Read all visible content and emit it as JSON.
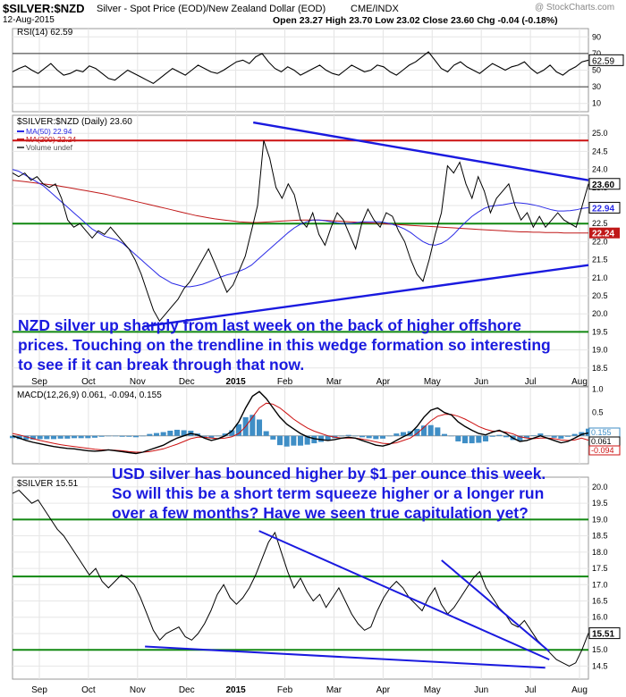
{
  "header": {
    "symbol": "$SILVER:$NZD",
    "description": "Silver - Spot Price (EOD)/New Zealand Dollar (EOD)",
    "source": "CME/INDX",
    "date": "12-Aug-2015",
    "ohlc": "Open 23.27  High 23.70  Low 23.02  Close 23.60  Chg -0.04 (-0.18%)",
    "watermark": "@ StockCharts.com"
  },
  "annotations": {
    "nzd_note": "NZD silver up sharply from last week on the back of higher offshore prices. Touching on the trendline in this wedge formation so interesting to see if it can break through that now.",
    "usd_note": "USD silver has bounced higher by $1 per ounce this week. So will this be a short term squeeze higher or a longer run over a few months? Have we seen true capitulation yet?"
  },
  "colors": {
    "price": "#000000",
    "ma50": "#2a2ae6",
    "ma200": "#c01818",
    "support_lines": "#118811",
    "resistance_line": "#cc1111",
    "trendline": "#1a1adf",
    "annotation_text": "#1a1adf",
    "macd": "#000000",
    "signal": "#cc1111",
    "histogram": "#3f8ec6",
    "last_price_tag": "#000000"
  },
  "x_axis": {
    "ticks": [
      "Sep",
      "Oct",
      "Nov",
      "Dec",
      "2015",
      "Feb",
      "Mar",
      "Apr",
      "May",
      "Jun",
      "Jul",
      "Aug"
    ]
  },
  "chart_data": [
    {
      "type": "line",
      "name": "rsi",
      "title": "RSI(14) 62.59",
      "ylim": [
        0,
        100
      ],
      "y_ticks": [
        10,
        30,
        50,
        70,
        90
      ],
      "reference_levels": [
        30,
        70
      ],
      "last_value_label": "62.59",
      "values": [
        48,
        52,
        55,
        50,
        46,
        52,
        58,
        50,
        44,
        46,
        50,
        48,
        55,
        52,
        46,
        40,
        38,
        44,
        50,
        46,
        42,
        38,
        34,
        40,
        46,
        52,
        48,
        44,
        50,
        56,
        52,
        48,
        46,
        50,
        55,
        60,
        62,
        58,
        66,
        70,
        60,
        52,
        48,
        54,
        50,
        44,
        48,
        52,
        56,
        50,
        46,
        44,
        50,
        56,
        52,
        48,
        50,
        56,
        54,
        48,
        44,
        50,
        56,
        60,
        66,
        72,
        62,
        52,
        48,
        56,
        60,
        54,
        50,
        46,
        52,
        58,
        54,
        50,
        54,
        56,
        60,
        52,
        46,
        50,
        56,
        48,
        44,
        50,
        54,
        60,
        62
      ]
    },
    {
      "type": "line",
      "name": "silver_nzd",
      "title": "$SILVER:$NZD (Daily) 23.60",
      "legend": [
        "MA(50) 22.94",
        "MA(200) 22.24",
        "Volume undef"
      ],
      "ylim": [
        18.0,
        25.5
      ],
      "y_ticks": [
        "18.5",
        "19.0",
        "19.5",
        "20.0",
        "20.5",
        "21.0",
        "21.5",
        "22.0",
        "22.5",
        "23.0",
        "23.5",
        "24.0",
        "24.5",
        "25.0"
      ],
      "horizontal_levels": {
        "resistance": 24.8,
        "support": [
          22.5,
          19.5
        ]
      },
      "trendlines": [
        {
          "name": "upper",
          "from": [
            0.418,
            25.3
          ],
          "to": [
            1.0,
            23.7
          ]
        },
        {
          "name": "lower",
          "from": [
            0.228,
            19.65
          ],
          "to": [
            1.0,
            21.35
          ]
        }
      ],
      "last_value_labels": {
        "close": "23.60",
        "ma50": "22.94",
        "ma200": "22.24"
      },
      "close": [
        23.9,
        23.8,
        23.9,
        23.7,
        23.8,
        23.6,
        23.5,
        23.6,
        23.2,
        22.6,
        22.4,
        22.5,
        22.3,
        22.1,
        22.3,
        22.2,
        22.4,
        22.2,
        22.0,
        21.8,
        21.5,
        21.1,
        20.6,
        20.1,
        19.8,
        20.0,
        20.2,
        20.4,
        20.7,
        20.9,
        21.2,
        21.5,
        21.8,
        21.4,
        21.0,
        20.6,
        20.8,
        21.2,
        21.6,
        22.3,
        23.0,
        24.8,
        24.3,
        23.5,
        23.2,
        23.6,
        23.3,
        22.6,
        22.4,
        22.8,
        22.2,
        21.9,
        22.4,
        22.8,
        22.6,
        22.2,
        21.8,
        22.5,
        22.9,
        22.6,
        22.4,
        22.8,
        22.7,
        22.3,
        22.0,
        21.5,
        21.1,
        20.9,
        21.5,
        22.2,
        22.8,
        24.1,
        23.9,
        24.2,
        23.6,
        23.2,
        23.8,
        23.4,
        22.8,
        23.2,
        23.4,
        23.6,
        23.0,
        22.6,
        22.8,
        22.4,
        22.7,
        22.4,
        22.6,
        22.8,
        22.6,
        22.5,
        22.4,
        23.0,
        23.6
      ],
      "ma50": [
        24.0,
        23.95,
        23.85,
        23.75,
        23.65,
        23.55,
        23.4,
        23.25,
        23.1,
        22.95,
        22.8,
        22.65,
        22.5,
        22.35,
        22.25,
        22.15,
        22.1,
        22.05,
        21.95,
        21.8,
        21.65,
        21.5,
        21.35,
        21.2,
        21.05,
        20.95,
        20.85,
        20.8,
        20.75,
        20.75,
        20.78,
        20.82,
        20.88,
        20.95,
        21.02,
        21.08,
        21.12,
        21.18,
        21.25,
        21.35,
        21.5,
        21.65,
        21.8,
        21.95,
        22.1,
        22.25,
        22.38,
        22.48,
        22.55,
        22.6,
        22.6,
        22.58,
        22.55,
        22.52,
        22.5,
        22.5,
        22.52,
        22.55,
        22.55,
        22.55,
        22.55,
        22.52,
        22.48,
        22.42,
        22.35,
        22.25,
        22.12,
        22.0,
        21.92,
        21.9,
        21.95,
        22.05,
        22.2,
        22.38,
        22.55,
        22.7,
        22.82,
        22.92,
        22.98,
        23.0,
        23.02,
        23.05,
        23.08,
        23.07,
        23.05,
        23.02,
        22.98,
        22.93,
        22.88,
        22.85,
        22.85,
        22.86,
        22.88,
        22.92,
        22.94
      ],
      "ma200": [
        23.7,
        23.68,
        23.66,
        23.64,
        23.62,
        23.6,
        23.58,
        23.56,
        23.53,
        23.5,
        23.47,
        23.44,
        23.41,
        23.38,
        23.35,
        23.32,
        23.28,
        23.24,
        23.2,
        23.16,
        23.12,
        23.08,
        23.04,
        23.0,
        22.96,
        22.92,
        22.88,
        22.84,
        22.8,
        22.76,
        22.72,
        22.69,
        22.66,
        22.63,
        22.61,
        22.59,
        22.57,
        22.55,
        22.54,
        22.53,
        22.53,
        22.54,
        22.55,
        22.56,
        22.57,
        22.58,
        22.59,
        22.6,
        22.6,
        22.6,
        22.6,
        22.59,
        22.58,
        22.57,
        22.56,
        22.55,
        22.54,
        22.53,
        22.52,
        22.51,
        22.5,
        22.49,
        22.48,
        22.47,
        22.46,
        22.45,
        22.44,
        22.43,
        22.42,
        22.41,
        22.4,
        22.39,
        22.38,
        22.37,
        22.36,
        22.35,
        22.34,
        22.33,
        22.32,
        22.31,
        22.3,
        22.29,
        22.28,
        22.27,
        22.27,
        22.26,
        22.26,
        22.25,
        22.25,
        22.25,
        22.24,
        22.24,
        22.24,
        22.24,
        22.24
      ]
    },
    {
      "type": "line",
      "name": "macd",
      "title": "MACD(12,26,9) 0.061, -0.094, 0.155",
      "ylim": [
        -0.6,
        1.05
      ],
      "y_ticks": [
        "1.0",
        "0.5"
      ],
      "zero_level": 0,
      "last_value_labels": [
        "0.155",
        "0.061",
        "-0.094"
      ],
      "macd": [
        0.0,
        -0.05,
        -0.1,
        -0.14,
        -0.17,
        -0.2,
        -0.23,
        -0.25,
        -0.27,
        -0.28,
        -0.3,
        -0.32,
        -0.33,
        -0.32,
        -0.3,
        -0.32,
        -0.34,
        -0.36,
        -0.38,
        -0.35,
        -0.3,
        -0.25,
        -0.2,
        -0.12,
        -0.05,
        0.0,
        0.05,
        0.02,
        -0.05,
        -0.1,
        -0.06,
        0.0,
        0.1,
        0.3,
        0.6,
        0.85,
        0.95,
        0.8,
        0.6,
        0.4,
        0.25,
        0.15,
        0.05,
        -0.02,
        -0.06,
        -0.08,
        -0.1,
        -0.08,
        -0.05,
        -0.03,
        -0.05,
        -0.1,
        -0.15,
        -0.2,
        -0.22,
        -0.18,
        -0.1,
        -0.02,
        0.05,
        0.2,
        0.4,
        0.55,
        0.6,
        0.5,
        0.45,
        0.3,
        0.2,
        0.12,
        0.05,
        0.02,
        0.08,
        0.12,
        0.05,
        -0.05,
        -0.12,
        -0.1,
        -0.05,
        0.0,
        -0.05,
        -0.1,
        -0.15,
        -0.12,
        -0.05,
        0.03,
        0.06
      ],
      "signal": [
        0.05,
        0.02,
        -0.02,
        -0.06,
        -0.1,
        -0.13,
        -0.16,
        -0.19,
        -0.21,
        -0.23,
        -0.25,
        -0.27,
        -0.29,
        -0.3,
        -0.3,
        -0.31,
        -0.32,
        -0.34,
        -0.35,
        -0.35,
        -0.34,
        -0.31,
        -0.28,
        -0.23,
        -0.18,
        -0.12,
        -0.06,
        -0.03,
        -0.03,
        -0.05,
        -0.06,
        -0.05,
        -0.02,
        0.05,
        0.2,
        0.4,
        0.6,
        0.7,
        0.68,
        0.6,
        0.48,
        0.36,
        0.26,
        0.17,
        0.1,
        0.05,
        0.0,
        -0.03,
        -0.05,
        -0.05,
        -0.05,
        -0.07,
        -0.1,
        -0.13,
        -0.16,
        -0.17,
        -0.15,
        -0.1,
        -0.05,
        0.05,
        0.18,
        0.32,
        0.42,
        0.46,
        0.46,
        0.42,
        0.36,
        0.28,
        0.2,
        0.14,
        0.1,
        0.1,
        0.08,
        0.04,
        -0.02,
        -0.05,
        -0.06,
        -0.05,
        -0.05,
        -0.06,
        -0.09,
        -0.1,
        -0.09,
        -0.05,
        -0.094
      ]
    },
    {
      "type": "line",
      "name": "silver_usd",
      "title": "$SILVER 15.51",
      "ylim": [
        14.1,
        20.3
      ],
      "y_ticks": [
        "14.5",
        "15.0",
        "15.5",
        "16.0",
        "16.5",
        "17.0",
        "17.5",
        "18.0",
        "18.5",
        "19.0",
        "19.5",
        "20.0"
      ],
      "horizontal_levels": {
        "support": [
          19.0,
          17.25,
          15.0
        ]
      },
      "trendlines": [
        {
          "name": "upper",
          "from": [
            0.428,
            18.65
          ],
          "to": [
            0.932,
            14.7
          ]
        },
        {
          "name": "lower",
          "from": [
            0.23,
            15.1
          ],
          "to": [
            0.925,
            14.45
          ]
        },
        {
          "name": "steep",
          "from": [
            0.745,
            17.75
          ],
          "to": [
            0.932,
            14.95
          ]
        }
      ],
      "last_value_label": "15.51",
      "close": [
        19.8,
        19.9,
        19.7,
        19.5,
        19.6,
        19.3,
        19.0,
        18.7,
        18.5,
        18.2,
        17.9,
        17.6,
        17.3,
        17.5,
        17.1,
        16.9,
        17.1,
        17.3,
        17.2,
        17.0,
        16.6,
        16.1,
        15.6,
        15.3,
        15.5,
        15.6,
        15.7,
        15.4,
        15.3,
        15.5,
        15.8,
        16.2,
        16.7,
        17.0,
        16.6,
        16.4,
        16.6,
        16.9,
        17.3,
        17.8,
        18.3,
        18.6,
        18.0,
        17.4,
        16.9,
        17.2,
        16.8,
        16.5,
        16.7,
        16.3,
        16.6,
        16.9,
        16.5,
        16.1,
        15.8,
        15.6,
        15.7,
        16.2,
        16.6,
        16.9,
        17.1,
        16.9,
        16.6,
        16.4,
        16.2,
        16.6,
        16.9,
        16.4,
        16.1,
        16.3,
        16.6,
        16.9,
        17.2,
        17.4,
        16.9,
        16.6,
        16.3,
        16.1,
        15.8,
        15.7,
        15.9,
        15.6,
        15.3,
        15.1,
        14.9,
        14.7,
        14.6,
        14.5,
        14.6,
        15.0,
        15.51
      ]
    }
  ]
}
